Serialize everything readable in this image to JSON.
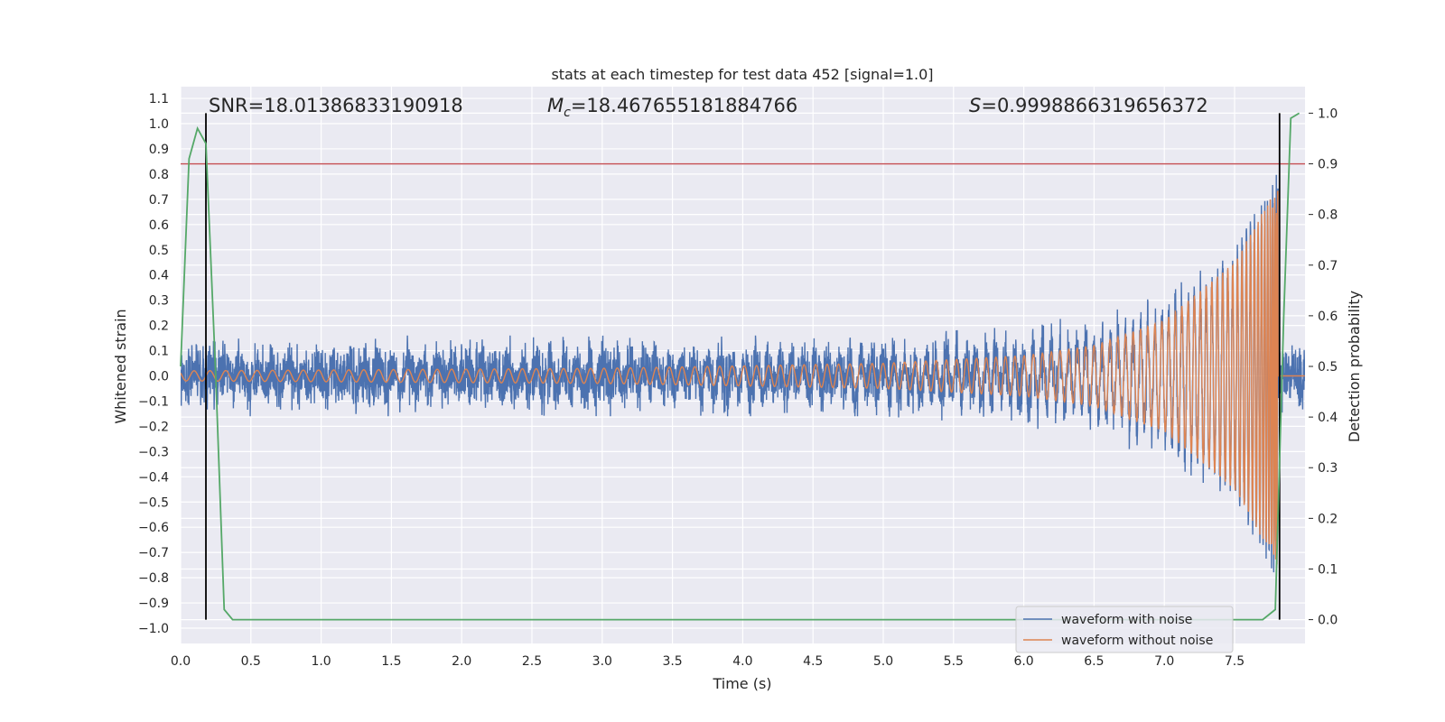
{
  "chart_data": {
    "type": "line",
    "title": "stats at each timestep for test data 452 [signal=1.0]",
    "xlabel": "Time (s)",
    "ylabel": "Whitened strain",
    "y2label": "Detection probability",
    "xlim": [
      0.0,
      8.0
    ],
    "ylim": [
      -1.1,
      1.15
    ],
    "y2lim": [
      -0.05,
      1.05
    ],
    "x_ticks": [
      "0.0",
      "0.5",
      "1.0",
      "1.5",
      "2.0",
      "2.5",
      "3.0",
      "3.5",
      "4.0",
      "4.5",
      "5.0",
      "5.5",
      "6.0",
      "6.5",
      "7.0",
      "7.5"
    ],
    "y_ticks": [
      "1.1",
      "1.0",
      "0.9",
      "0.8",
      "0.7",
      "0.6",
      "0.5",
      "0.4",
      "0.3",
      "0.2",
      "0.1",
      "0.0",
      "−0.1",
      "−0.2",
      "−0.3",
      "−0.4",
      "−0.5",
      "−0.6",
      "−0.7",
      "−0.8",
      "−0.9",
      "−1.0"
    ],
    "y2_ticks": [
      "1.0",
      "0.9",
      "0.8",
      "0.7",
      "0.6",
      "0.5",
      "0.4",
      "0.3",
      "0.2",
      "0.1",
      "0.0"
    ],
    "grid": true,
    "annotations": {
      "snr": "SNR=18.01386833190918",
      "mc_symbol": "M",
      "mc_sub": "c",
      "mc_value": "=18.467655181884766",
      "s_symbol": "S",
      "s_value": "=0.9998866319656372"
    },
    "threshold_y2": 0.9,
    "vlines_x": [
      0.18,
      7.82
    ],
    "legend": {
      "placement": "lower-right",
      "entries": [
        "waveform with noise",
        "waveform without noise"
      ]
    },
    "series": [
      {
        "name": "waveform with noise",
        "color": "#4c72b0",
        "description": "noisy whitened strain, envelope ~±0.15 growing to ~±0.8 near merger at 7.8 s",
        "envelope_points": [
          [
            0.0,
            0.15
          ],
          [
            5.0,
            0.16
          ],
          [
            6.0,
            0.2
          ],
          [
            6.5,
            0.25
          ],
          [
            7.0,
            0.33
          ],
          [
            7.5,
            0.5
          ],
          [
            7.7,
            0.7
          ],
          [
            7.8,
            0.8
          ]
        ]
      },
      {
        "name": "waveform without noise",
        "color": "#dd8452",
        "description": "chirp signal, amplitude ~0.02 growing to ~0.75 at merger 7.81 s, zero after",
        "amplitude_points": [
          [
            0.0,
            0.02
          ],
          [
            3.0,
            0.03
          ],
          [
            5.0,
            0.05
          ],
          [
            6.0,
            0.08
          ],
          [
            6.5,
            0.12
          ],
          [
            7.0,
            0.22
          ],
          [
            7.5,
            0.45
          ],
          [
            7.7,
            0.65
          ],
          [
            7.8,
            0.75
          ]
        ]
      },
      {
        "color": "#55a868",
        "axis": "right",
        "x": [
          0.0,
          0.06,
          0.12,
          0.18,
          0.25,
          0.31,
          0.37,
          0.5,
          1.0,
          2.0,
          3.0,
          4.0,
          5.0,
          6.0,
          7.0,
          7.7,
          7.79,
          7.85,
          7.9,
          7.96
        ],
        "values": [
          0.5,
          0.91,
          0.97,
          0.94,
          0.48,
          0.02,
          0.0,
          0.0,
          0.0,
          0.0,
          0.0,
          0.0,
          0.0,
          0.0,
          0.0,
          0.0,
          0.02,
          0.6,
          0.99,
          1.0
        ]
      }
    ],
    "colors": {
      "background": "#eaeaf2",
      "grid": "#ffffff",
      "threshold": "#c44e52",
      "vline": "#000000"
    }
  }
}
